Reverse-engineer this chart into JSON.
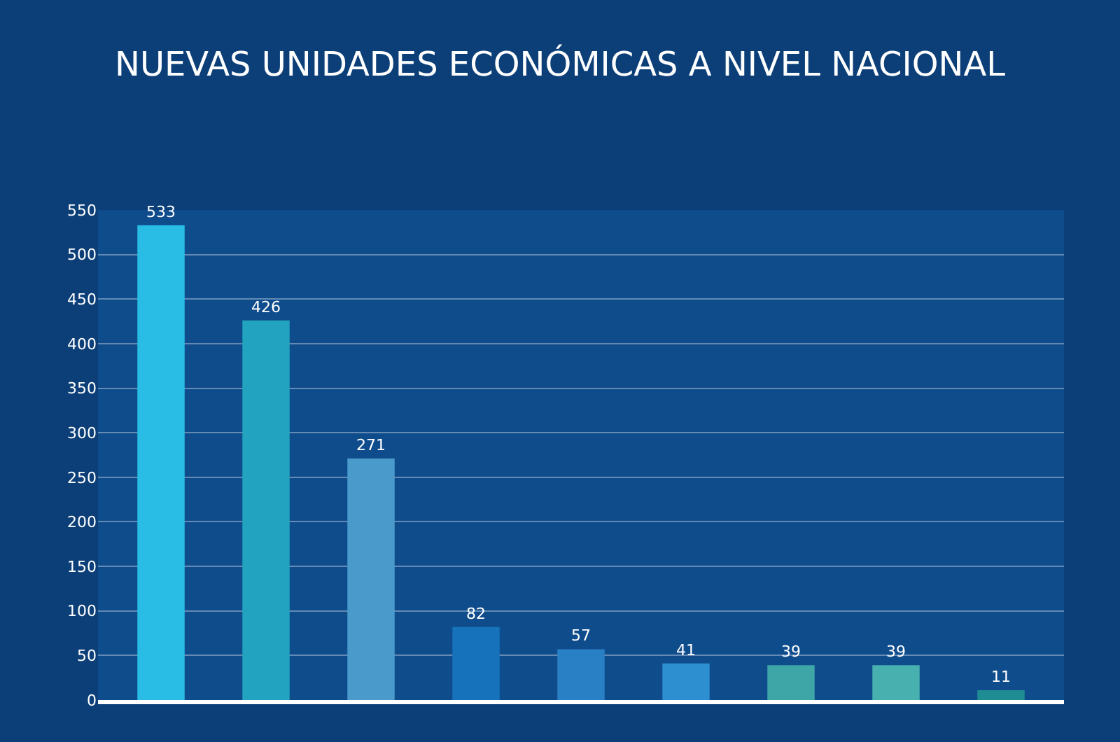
{
  "chart_data": {
    "type": "bar",
    "title": "NUEVAS UNIDADES ECONÓMICAS A NIVEL NACIONAL",
    "categories": [
      null,
      null,
      null,
      null,
      null,
      null,
      null,
      null,
      null
    ],
    "values": [
      533,
      426,
      271,
      82,
      57,
      41,
      39,
      39,
      11
    ],
    "colors": [
      "#29bde6",
      "#22a3bf",
      "#4a9bcb",
      "#1673bb",
      "#2a80c4",
      "#2d8fd0",
      "#3fa6a8",
      "#48b1b0",
      "#1f8c93"
    ],
    "data_labels": true,
    "ylim": [
      0,
      550
    ],
    "yticks": [
      0,
      50,
      100,
      150,
      200,
      250,
      300,
      350,
      400,
      450,
      500,
      550
    ],
    "grid": "y",
    "tick_labels": "y"
  }
}
